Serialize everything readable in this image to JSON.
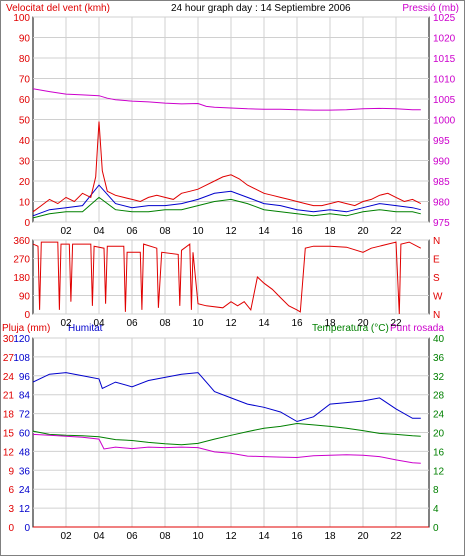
{
  "header": {
    "wind_speed_label": "Velocitat del vent (kmh)",
    "title": "24 hour graph day : 14 Septiembre 2006",
    "pressure_label": "Pressió (mb)"
  },
  "panel3": {
    "rain_label": "Pluja (mm)",
    "humidity_label": "Humitat",
    "temperature_label": "Temperatura (°C)",
    "dewpoint_label": "Punt rosada"
  },
  "colors": {
    "wind": "#e00000",
    "gust_blue": "#0000cc",
    "gust_green": "#008000",
    "pressure": "#cc00cc",
    "humidity": "#0000cc",
    "temperature": "#008000",
    "dewpoint": "#cc00cc",
    "rain": "#e00000",
    "direction": "#e00000",
    "grid": "#d0d0d0"
  },
  "chart_data": [
    {
      "type": "line",
      "name": "wind_pressure",
      "x_ticks": [
        "02",
        "04",
        "06",
        "08",
        "10",
        "12",
        "14",
        "16",
        "18",
        "20",
        "22"
      ],
      "xlim": [
        0,
        24
      ],
      "y_left": {
        "ticks": [
          "0",
          "10",
          "20",
          "30",
          "40",
          "50",
          "60",
          "70",
          "80",
          "90",
          "100"
        ],
        "ylim": [
          0,
          100
        ],
        "unit": "kmh"
      },
      "y_right": {
        "ticks": [
          "975",
          "980",
          "985",
          "990",
          "995",
          "1000",
          "1005",
          "1010",
          "1015",
          "1020",
          "1025"
        ],
        "ylim": [
          975,
          1025
        ],
        "unit": "mb"
      },
      "wind_speed": [
        [
          0,
          5
        ],
        [
          0.5,
          8
        ],
        [
          1,
          11
        ],
        [
          1.5,
          9
        ],
        [
          2,
          12
        ],
        [
          2.5,
          10
        ],
        [
          3,
          14
        ],
        [
          3.5,
          12
        ],
        [
          3.8,
          22
        ],
        [
          4,
          49
        ],
        [
          4.2,
          25
        ],
        [
          4.5,
          15
        ],
        [
          5,
          13
        ],
        [
          5.5,
          12
        ],
        [
          6,
          11
        ],
        [
          6.5,
          10
        ],
        [
          7,
          12
        ],
        [
          7.5,
          13
        ],
        [
          8,
          12
        ],
        [
          8.5,
          11
        ],
        [
          9,
          14
        ],
        [
          9.5,
          15
        ],
        [
          10,
          16
        ],
        [
          10.5,
          18
        ],
        [
          11,
          20
        ],
        [
          11.5,
          22
        ],
        [
          12,
          23
        ],
        [
          12.5,
          21
        ],
        [
          13,
          18
        ],
        [
          13.5,
          16
        ],
        [
          14,
          14
        ],
        [
          14.5,
          13
        ],
        [
          15,
          12
        ],
        [
          15.5,
          11
        ],
        [
          16,
          10
        ],
        [
          16.5,
          9
        ],
        [
          17,
          8
        ],
        [
          17.5,
          8
        ],
        [
          18,
          9
        ],
        [
          18.5,
          10
        ],
        [
          19,
          9
        ],
        [
          19.5,
          8
        ],
        [
          20,
          10
        ],
        [
          20.5,
          11
        ],
        [
          21,
          13
        ],
        [
          21.5,
          14
        ],
        [
          22,
          12
        ],
        [
          22.5,
          10
        ],
        [
          23,
          11
        ],
        [
          23.5,
          9
        ]
      ],
      "wind_gust_blue": [
        [
          0,
          3
        ],
        [
          1,
          6
        ],
        [
          2,
          7
        ],
        [
          3,
          8
        ],
        [
          4,
          18
        ],
        [
          5,
          9
        ],
        [
          6,
          7
        ],
        [
          7,
          8
        ],
        [
          8,
          8
        ],
        [
          9,
          9
        ],
        [
          10,
          11
        ],
        [
          11,
          14
        ],
        [
          12,
          15
        ],
        [
          13,
          12
        ],
        [
          14,
          9
        ],
        [
          15,
          8
        ],
        [
          16,
          6
        ],
        [
          17,
          5
        ],
        [
          18,
          6
        ],
        [
          19,
          5
        ],
        [
          20,
          7
        ],
        [
          21,
          9
        ],
        [
          22,
          8
        ],
        [
          23,
          7
        ],
        [
          23.5,
          6
        ]
      ],
      "wind_gust_green": [
        [
          0,
          2
        ],
        [
          1,
          4
        ],
        [
          2,
          5
        ],
        [
          3,
          5
        ],
        [
          4,
          12
        ],
        [
          5,
          6
        ],
        [
          6,
          5
        ],
        [
          7,
          5
        ],
        [
          8,
          6
        ],
        [
          9,
          6
        ],
        [
          10,
          8
        ],
        [
          11,
          10
        ],
        [
          12,
          11
        ],
        [
          13,
          9
        ],
        [
          14,
          6
        ],
        [
          15,
          5
        ],
        [
          16,
          4
        ],
        [
          17,
          3
        ],
        [
          18,
          4
        ],
        [
          19,
          3
        ],
        [
          20,
          5
        ],
        [
          21,
          6
        ],
        [
          22,
          5
        ],
        [
          23,
          5
        ],
        [
          23.5,
          4
        ]
      ],
      "pressure": [
        [
          0,
          1007.5
        ],
        [
          1,
          1006.8
        ],
        [
          2,
          1006.2
        ],
        [
          3,
          1006
        ],
        [
          4,
          1005.8
        ],
        [
          4.5,
          1005.2
        ],
        [
          5,
          1004.8
        ],
        [
          6,
          1004.5
        ],
        [
          7,
          1004.3
        ],
        [
          8,
          1004
        ],
        [
          9,
          1003.8
        ],
        [
          10,
          1003.9
        ],
        [
          10.5,
          1003.2
        ],
        [
          11,
          1003
        ],
        [
          12,
          1002.8
        ],
        [
          13,
          1002.6
        ],
        [
          14,
          1002.5
        ],
        [
          15,
          1002.5
        ],
        [
          16,
          1002.4
        ],
        [
          17,
          1002.3
        ],
        [
          18,
          1002.3
        ],
        [
          19,
          1002.4
        ],
        [
          20,
          1002.6
        ],
        [
          21,
          1002.7
        ],
        [
          22,
          1002.6
        ],
        [
          23,
          1002.4
        ],
        [
          23.5,
          1002.4
        ]
      ]
    },
    {
      "type": "line",
      "name": "wind_direction",
      "x_ticks": [
        "02",
        "04",
        "06",
        "08",
        "10",
        "12",
        "14",
        "16",
        "18",
        "20",
        "22"
      ],
      "xlim": [
        0,
        24
      ],
      "y_left": {
        "ticks": [
          "0",
          "90",
          "180",
          "270",
          "360"
        ],
        "ylim": [
          0,
          360
        ],
        "unit": "°"
      },
      "y_right": {
        "ticks": [
          "N",
          "W",
          "S",
          "E",
          "N"
        ]
      },
      "direction": [
        [
          0,
          340
        ],
        [
          0.3,
          330
        ],
        [
          0.4,
          20
        ],
        [
          0.5,
          350
        ],
        [
          1.5,
          350
        ],
        [
          1.6,
          20
        ],
        [
          1.7,
          340
        ],
        [
          2.2,
          340
        ],
        [
          2.3,
          60
        ],
        [
          2.4,
          340
        ],
        [
          3.5,
          340
        ],
        [
          3.6,
          40
        ],
        [
          3.7,
          330
        ],
        [
          4.3,
          320
        ],
        [
          4.4,
          50
        ],
        [
          4.5,
          330
        ],
        [
          5.5,
          330
        ],
        [
          5.6,
          10
        ],
        [
          5.7,
          300
        ],
        [
          6.5,
          300
        ],
        [
          6.6,
          20
        ],
        [
          6.7,
          340
        ],
        [
          7.5,
          320
        ],
        [
          7.6,
          30
        ],
        [
          7.8,
          300
        ],
        [
          8.8,
          290
        ],
        [
          8.9,
          40
        ],
        [
          9,
          310
        ],
        [
          9.5,
          340
        ],
        [
          9.6,
          20
        ],
        [
          9.7,
          300
        ],
        [
          10,
          50
        ],
        [
          10.5,
          40
        ],
        [
          11.5,
          30
        ],
        [
          12,
          60
        ],
        [
          12.4,
          40
        ],
        [
          12.8,
          60
        ],
        [
          13.2,
          20
        ],
        [
          13.6,
          180
        ],
        [
          14,
          150
        ],
        [
          14.5,
          120
        ],
        [
          15,
          80
        ],
        [
          15.5,
          40
        ],
        [
          16,
          20
        ],
        [
          16.2,
          10
        ],
        [
          16.5,
          320
        ],
        [
          17,
          330
        ],
        [
          18,
          330
        ],
        [
          19,
          325
        ],
        [
          20,
          300
        ],
        [
          20.5,
          320
        ],
        [
          21,
          330
        ],
        [
          21.5,
          340
        ],
        [
          22,
          350
        ],
        [
          22.2,
          0
        ],
        [
          22.3,
          340
        ],
        [
          22.8,
          350
        ],
        [
          23.5,
          320
        ]
      ]
    },
    {
      "type": "line",
      "name": "rain_humidity_temperature",
      "x_ticks": [
        "02",
        "04",
        "06",
        "08",
        "10",
        "12",
        "14",
        "16",
        "18",
        "20",
        "22"
      ],
      "xlim": [
        0,
        24
      ],
      "y_left_rain": {
        "ticks": [
          "0",
          "3",
          "6",
          "9",
          "12",
          "15",
          "18",
          "21",
          "24",
          "27",
          "30"
        ],
        "ylim": [
          0,
          30
        ],
        "unit": "mm"
      },
      "y_left_humidity": {
        "ticks": [
          "0",
          "12",
          "24",
          "36",
          "48",
          "60",
          "72",
          "84",
          "96",
          "108",
          "120"
        ],
        "ylim": [
          0,
          120
        ],
        "unit": "%"
      },
      "y_right": {
        "ticks": [
          "0",
          "4",
          "8",
          "12",
          "16",
          "20",
          "24",
          "28",
          "32",
          "36",
          "40"
        ],
        "ylim": [
          0,
          40
        ],
        "unit": "°C"
      },
      "rain": [
        [
          0,
          0
        ],
        [
          24,
          0
        ]
      ],
      "humidity": [
        [
          0,
          92
        ],
        [
          1,
          97
        ],
        [
          2,
          98
        ],
        [
          3,
          96
        ],
        [
          4,
          94
        ],
        [
          4.2,
          88
        ],
        [
          5,
          92
        ],
        [
          6,
          89
        ],
        [
          7,
          93
        ],
        [
          8,
          95
        ],
        [
          9,
          97
        ],
        [
          10,
          98
        ],
        [
          10.5,
          92
        ],
        [
          11,
          86
        ],
        [
          12,
          82
        ],
        [
          13,
          78
        ],
        [
          14,
          76
        ],
        [
          15,
          73
        ],
        [
          16,
          67
        ],
        [
          17,
          70
        ],
        [
          18,
          78
        ],
        [
          19,
          79
        ],
        [
          20,
          80
        ],
        [
          21,
          82
        ],
        [
          22,
          75
        ],
        [
          23,
          69
        ],
        [
          23.5,
          69
        ]
      ],
      "temperature": [
        [
          0,
          20.3
        ],
        [
          1,
          19.6
        ],
        [
          2,
          19.4
        ],
        [
          3,
          19.3
        ],
        [
          4,
          19.1
        ],
        [
          5,
          18.5
        ],
        [
          6,
          18.3
        ],
        [
          7,
          17.9
        ],
        [
          8,
          17.6
        ],
        [
          9,
          17.4
        ],
        [
          10,
          17.7
        ],
        [
          11,
          18.6
        ],
        [
          12,
          19.4
        ],
        [
          13,
          20.2
        ],
        [
          14,
          20.9
        ],
        [
          15,
          21.3
        ],
        [
          16,
          21.9
        ],
        [
          17,
          21.6
        ],
        [
          18,
          21.3
        ],
        [
          19,
          20.9
        ],
        [
          20,
          20.4
        ],
        [
          21,
          19.8
        ],
        [
          22,
          19.6
        ],
        [
          23,
          19.3
        ],
        [
          23.5,
          19.2
        ]
      ],
      "dewpoint": [
        [
          0,
          19.6
        ],
        [
          1,
          19.4
        ],
        [
          2,
          19.2
        ],
        [
          3,
          19.0
        ],
        [
          4,
          18.6
        ],
        [
          4.3,
          16.5
        ],
        [
          5,
          16.9
        ],
        [
          6,
          16.6
        ],
        [
          7,
          16.9
        ],
        [
          8,
          16.8
        ],
        [
          9,
          16.9
        ],
        [
          10,
          16.8
        ],
        [
          11,
          15.9
        ],
        [
          12,
          15.6
        ],
        [
          13,
          15.0
        ],
        [
          14,
          14.9
        ],
        [
          15,
          14.8
        ],
        [
          16,
          14.7
        ],
        [
          17,
          15.1
        ],
        [
          18,
          15.2
        ],
        [
          19,
          15.3
        ],
        [
          20,
          15.2
        ],
        [
          21,
          14.9
        ],
        [
          22,
          14.2
        ],
        [
          23,
          13.6
        ],
        [
          23.5,
          13.5
        ]
      ]
    }
  ]
}
